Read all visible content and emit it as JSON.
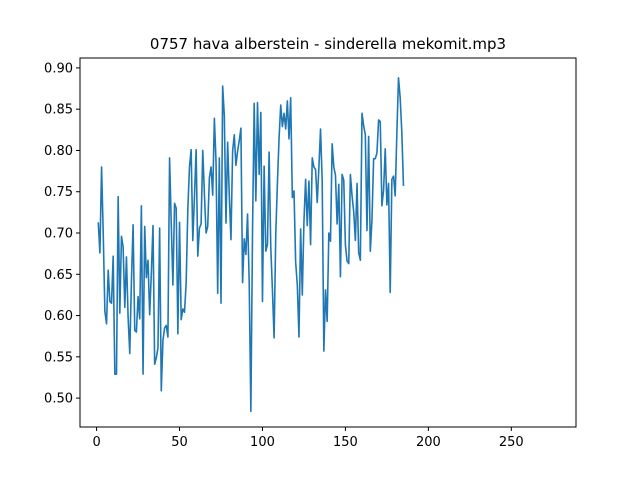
{
  "chart_data": {
    "type": "line",
    "title": "0757 hava alberstein - sinderella mekomit.mp3",
    "xlabel": "",
    "ylabel": "",
    "xlim": [
      -10,
      289
    ],
    "ylim": [
      0.465,
      0.912
    ],
    "x_ticks": [
      0,
      50,
      100,
      150,
      200,
      250
    ],
    "y_ticks": [
      0.5,
      0.55,
      0.6,
      0.65,
      0.7,
      0.75,
      0.8,
      0.85,
      0.9
    ],
    "x_tick_labels": [
      "0",
      "50",
      "100",
      "150",
      "200",
      "250"
    ],
    "y_tick_labels": [
      "0.50",
      "0.55",
      "0.60",
      "0.65",
      "0.70",
      "0.75",
      "0.80",
      "0.85",
      "0.90"
    ],
    "grid": false,
    "legend": "none",
    "series": [
      {
        "color": "#1f77b4",
        "x_start": 1,
        "x_step": 1,
        "values": [
          0.713,
          0.676,
          0.78,
          0.7,
          0.605,
          0.59,
          0.655,
          0.617,
          0.615,
          0.672,
          0.529,
          0.529,
          0.744,
          0.603,
          0.696,
          0.683,
          0.61,
          0.671,
          0.598,
          0.554,
          0.641,
          0.71,
          0.582,
          0.58,
          0.623,
          0.596,
          0.733,
          0.529,
          0.708,
          0.646,
          0.667,
          0.601,
          0.651,
          0.709,
          0.541,
          0.549,
          0.561,
          0.706,
          0.509,
          0.57,
          0.585,
          0.588,
          0.574,
          0.791,
          0.712,
          0.637,
          0.736,
          0.73,
          0.578,
          0.713,
          0.595,
          0.608,
          0.604,
          0.64,
          0.729,
          0.78,
          0.801,
          0.691,
          0.744,
          0.801,
          0.672,
          0.706,
          0.711,
          0.8,
          0.747,
          0.7,
          0.708,
          0.767,
          0.78,
          0.746,
          0.839,
          0.786,
          0.627,
          0.791,
          0.615,
          0.878,
          0.842,
          0.712,
          0.81,
          0.745,
          0.692,
          0.799,
          0.819,
          0.782,
          0.799,
          0.812,
          0.827,
          0.64,
          0.693,
          0.674,
          0.723,
          0.64,
          0.484,
          0.701,
          0.857,
          0.739,
          0.858,
          0.771,
          0.846,
          0.617,
          0.781,
          0.678,
          0.686,
          0.798,
          0.683,
          0.631,
          0.573,
          0.698,
          0.76,
          0.815,
          0.855,
          0.829,
          0.845,
          0.826,
          0.86,
          0.814,
          0.864,
          0.743,
          0.751,
          0.665,
          0.637,
          0.574,
          0.705,
          0.625,
          0.714,
          0.765,
          0.709,
          0.763,
          0.686,
          0.791,
          0.78,
          0.777,
          0.737,
          0.779,
          0.826,
          0.763,
          0.557,
          0.631,
          0.593,
          0.7,
          0.69,
          0.808,
          0.78,
          0.77,
          0.711,
          0.759,
          0.647,
          0.771,
          0.764,
          0.685,
          0.666,
          0.663,
          0.771,
          0.745,
          0.726,
          0.691,
          0.76,
          0.676,
          0.667,
          0.845,
          0.83,
          0.819,
          0.703,
          0.817,
          0.678,
          0.716,
          0.79,
          0.79,
          0.797,
          0.837,
          0.835,
          0.733,
          0.752,
          0.802,
          0.734,
          0.76,
          0.628,
          0.765,
          0.769,
          0.745,
          0.82,
          0.888,
          0.864,
          0.822,
          0.757
        ]
      }
    ]
  }
}
